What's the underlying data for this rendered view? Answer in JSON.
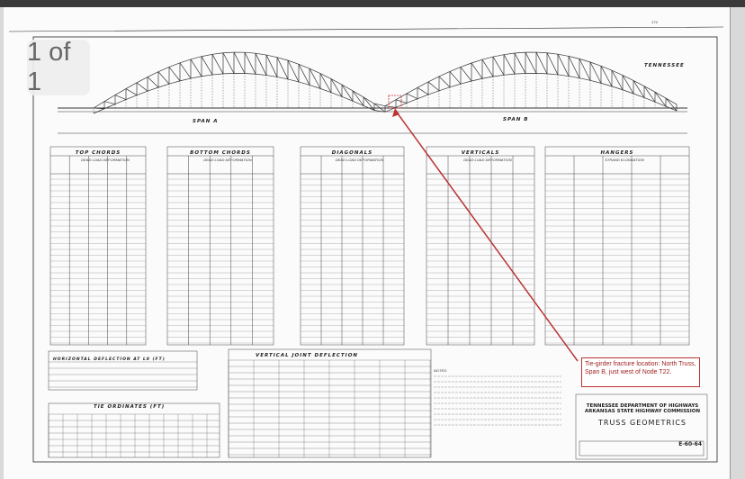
{
  "viewer": {
    "page_indicator": "1 of 1"
  },
  "drawing": {
    "labels": {
      "span_a": "SPAN A",
      "span_b": "SPAN B",
      "state": "TENNESSEE",
      "sheet_no": "174"
    },
    "tables": [
      {
        "title": "TOP CHORDS",
        "sub": "DEAD LOAD DEFORMATION"
      },
      {
        "title": "BOTTOM CHORDS",
        "sub": "DEAD LOAD DEFORMATION"
      },
      {
        "title": "DIAGONALS",
        "sub": "DEAD LOAD DEFORMATION"
      },
      {
        "title": "VERTICALS",
        "sub": "DEAD LOAD DEFORMATION"
      },
      {
        "title": "HANGERS",
        "sub": "STRAND ELONGATION"
      }
    ],
    "lower_tables": {
      "horizontal": "HORIZONTAL DEFLECTION AT L0 (FT)",
      "vertical": "VERTICAL JOINT DEFLECTION",
      "tie": "TIE ORDINATES (FT)",
      "notes": "NOTES:"
    },
    "title_block": {
      "agency1": "TENNESSEE DEPARTMENT OF HIGHWAYS",
      "agency2": "ARKANSAS STATE HIGHWAY COMMISSION",
      "title": "TRUSS GEOMETRICS",
      "drawing_no": "E-60-64"
    }
  },
  "annotation": {
    "text": "Tie-girder fracture location: North Truss, Span B, just west of Node T22.",
    "color": "#b33333"
  }
}
